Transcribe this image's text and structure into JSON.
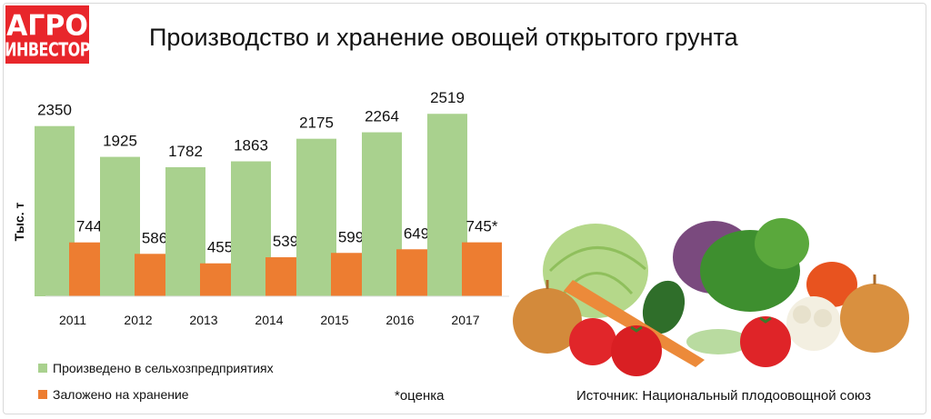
{
  "logo": {
    "line1": "АГРО",
    "line2": "ИНВЕСТОР"
  },
  "title": "Производство и хранение овощей открытого грунта",
  "note": "*оценка",
  "source": "Источник: Национальный плодоовощной союз",
  "colors": {
    "green": "#a9d18e",
    "orange": "#ed7d31",
    "brand_red": "#e8262b"
  },
  "chart_data": {
    "type": "bar",
    "ylabel": "Тыс. т",
    "categories": [
      "2011",
      "2012",
      "2013",
      "2014",
      "2015",
      "2016",
      "2017"
    ],
    "series": [
      {
        "name": "Произведено в сельхозпредприятиях",
        "color": "#a9d18e",
        "values": [
          2350,
          1925,
          1782,
          1863,
          2175,
          2264,
          2519
        ],
        "labels": [
          "2350",
          "1925",
          "1782",
          "1863",
          "2175",
          "2264",
          "2519"
        ]
      },
      {
        "name": "Заложено на хранение",
        "color": "#ed7d31",
        "values": [
          744,
          586,
          455,
          539,
          599,
          649,
          745
        ],
        "labels": [
          "744",
          "586",
          "455",
          "539",
          "599",
          "649",
          "745*"
        ]
      }
    ],
    "legend_position": "bottom-left"
  }
}
